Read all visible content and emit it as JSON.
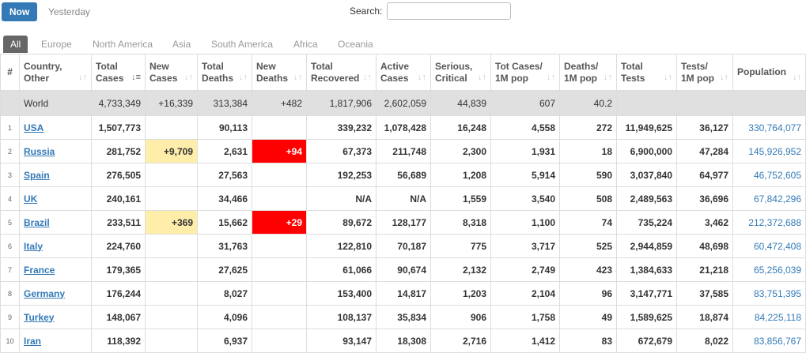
{
  "toolbar": {
    "now_label": "Now",
    "yesterday_label": "Yesterday",
    "search_label": "Search:",
    "search_value": ""
  },
  "regions": [
    "All",
    "Europe",
    "North America",
    "Asia",
    "South America",
    "Africa",
    "Oceania"
  ],
  "headers": [
    [
      "#",
      ""
    ],
    [
      "Country,",
      "Other"
    ],
    [
      "Total",
      "Cases"
    ],
    [
      "New",
      "Cases"
    ],
    [
      "Total",
      "Deaths"
    ],
    [
      "New",
      "Deaths"
    ],
    [
      "Total",
      "Recovered"
    ],
    [
      "Active",
      "Cases"
    ],
    [
      "Serious,",
      "Critical"
    ],
    [
      "Tot Cases/",
      "1M pop"
    ],
    [
      "Deaths/",
      "1M pop"
    ],
    [
      "Total",
      "Tests"
    ],
    [
      "Tests/",
      "1M pop"
    ],
    [
      "Population",
      ""
    ]
  ],
  "world": {
    "country": "World",
    "total_cases": "4,733,349",
    "new_cases": "+16,339",
    "total_deaths": "313,384",
    "new_deaths": "+482",
    "total_recovered": "1,817,906",
    "active_cases": "2,602,059",
    "serious": "44,839",
    "cases_per_m": "607",
    "deaths_per_m": "40.2",
    "total_tests": "",
    "tests_per_m": "",
    "population": ""
  },
  "rows": [
    {
      "num": "1",
      "country": "USA",
      "total_cases": "1,507,773",
      "new_cases": "",
      "total_deaths": "90,113",
      "new_deaths": "",
      "total_recovered": "339,232",
      "active_cases": "1,078,428",
      "serious": "16,248",
      "cases_per_m": "4,558",
      "deaths_per_m": "272",
      "total_tests": "11,949,625",
      "tests_per_m": "36,127",
      "population": "330,764,077"
    },
    {
      "num": "2",
      "country": "Russia",
      "total_cases": "281,752",
      "new_cases": "+9,709",
      "total_deaths": "2,631",
      "new_deaths": "+94",
      "total_recovered": "67,373",
      "active_cases": "211,748",
      "serious": "2,300",
      "cases_per_m": "1,931",
      "deaths_per_m": "18",
      "total_tests": "6,900,000",
      "tests_per_m": "47,284",
      "population": "145,926,952"
    },
    {
      "num": "3",
      "country": "Spain",
      "total_cases": "276,505",
      "new_cases": "",
      "total_deaths": "27,563",
      "new_deaths": "",
      "total_recovered": "192,253",
      "active_cases": "56,689",
      "serious": "1,208",
      "cases_per_m": "5,914",
      "deaths_per_m": "590",
      "total_tests": "3,037,840",
      "tests_per_m": "64,977",
      "population": "46,752,605"
    },
    {
      "num": "4",
      "country": "UK",
      "total_cases": "240,161",
      "new_cases": "",
      "total_deaths": "34,466",
      "new_deaths": "",
      "total_recovered": "N/A",
      "active_cases": "N/A",
      "serious": "1,559",
      "cases_per_m": "3,540",
      "deaths_per_m": "508",
      "total_tests": "2,489,563",
      "tests_per_m": "36,696",
      "population": "67,842,296"
    },
    {
      "num": "5",
      "country": "Brazil",
      "total_cases": "233,511",
      "new_cases": "+369",
      "total_deaths": "15,662",
      "new_deaths": "+29",
      "total_recovered": "89,672",
      "active_cases": "128,177",
      "serious": "8,318",
      "cases_per_m": "1,100",
      "deaths_per_m": "74",
      "total_tests": "735,224",
      "tests_per_m": "3,462",
      "population": "212,372,688"
    },
    {
      "num": "6",
      "country": "Italy",
      "total_cases": "224,760",
      "new_cases": "",
      "total_deaths": "31,763",
      "new_deaths": "",
      "total_recovered": "122,810",
      "active_cases": "70,187",
      "serious": "775",
      "cases_per_m": "3,717",
      "deaths_per_m": "525",
      "total_tests": "2,944,859",
      "tests_per_m": "48,698",
      "population": "60,472,408"
    },
    {
      "num": "7",
      "country": "France",
      "total_cases": "179,365",
      "new_cases": "",
      "total_deaths": "27,625",
      "new_deaths": "",
      "total_recovered": "61,066",
      "active_cases": "90,674",
      "serious": "2,132",
      "cases_per_m": "2,749",
      "deaths_per_m": "423",
      "total_tests": "1,384,633",
      "tests_per_m": "21,218",
      "population": "65,256,039"
    },
    {
      "num": "8",
      "country": "Germany",
      "total_cases": "176,244",
      "new_cases": "",
      "total_deaths": "8,027",
      "new_deaths": "",
      "total_recovered": "153,400",
      "active_cases": "14,817",
      "serious": "1,203",
      "cases_per_m": "2,104",
      "deaths_per_m": "96",
      "total_tests": "3,147,771",
      "tests_per_m": "37,585",
      "population": "83,751,395"
    },
    {
      "num": "9",
      "country": "Turkey",
      "total_cases": "148,067",
      "new_cases": "",
      "total_deaths": "4,096",
      "new_deaths": "",
      "total_recovered": "108,137",
      "active_cases": "35,834",
      "serious": "906",
      "cases_per_m": "1,758",
      "deaths_per_m": "49",
      "total_tests": "1,589,625",
      "tests_per_m": "18,874",
      "population": "84,225,118"
    },
    {
      "num": "10",
      "country": "Iran",
      "total_cases": "118,392",
      "new_cases": "",
      "total_deaths": "6,937",
      "new_deaths": "",
      "total_recovered": "93,147",
      "active_cases": "18,308",
      "serious": "2,716",
      "cases_per_m": "1,412",
      "deaths_per_m": "83",
      "total_tests": "672,679",
      "tests_per_m": "8,022",
      "population": "83,856,767"
    }
  ],
  "colors": {
    "accent": "#337ab7",
    "new_cases_highlight": "#ffeeaa",
    "new_deaths_highlight": "#ff0000",
    "world_row": "#e0e0e0"
  },
  "sort_icon": "sort-arrows-icon"
}
